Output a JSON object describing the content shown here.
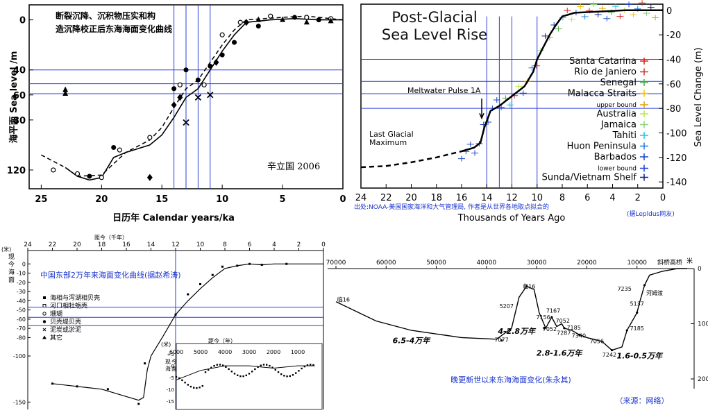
{
  "chart_data": [
    {
      "type": "scatter",
      "title": "断裂沉降、沉积物压实和构造沉降校正后东海海面变化曲线",
      "author": "辛立国 2006",
      "ylabel": "海平面 Sea level /m",
      "xlabel": "日历年 Calendar years/ka",
      "xlim": [
        26,
        0
      ],
      "ylim": [
        -135,
        12
      ],
      "x_ticks": [
        {
          "v": 25,
          "t": "25"
        },
        {
          "v": 20,
          "t": "20"
        },
        {
          "v": 15,
          "t": "15"
        },
        {
          "v": 10,
          "t": "10"
        },
        {
          "v": 5,
          "t": "5"
        },
        {
          "v": 0,
          "t": "0"
        }
      ],
      "y_ticks": [
        {
          "v": 0,
          "t": "0"
        },
        {
          "v": -40,
          "t": "40"
        },
        {
          "v": -60,
          "t": "60"
        },
        {
          "v": -80,
          "t": "80"
        },
        {
          "v": -120,
          "t": "120"
        }
      ],
      "ref_h": [
        -40,
        -51,
        -59
      ],
      "ref_v": [
        14,
        13,
        12,
        11
      ],
      "solid_curve": [
        [
          23,
          -118
        ],
        [
          22,
          -125
        ],
        [
          21,
          -128
        ],
        [
          20,
          -126
        ],
        [
          19,
          -110
        ],
        [
          18,
          -106
        ],
        [
          16,
          -100
        ],
        [
          15,
          -92
        ],
        [
          14,
          -78
        ],
        [
          13,
          -62
        ],
        [
          12,
          -55
        ],
        [
          11,
          -40
        ],
        [
          10,
          -25
        ],
        [
          9,
          -12
        ],
        [
          8,
          -2
        ],
        [
          6,
          0
        ],
        [
          4,
          1
        ],
        [
          2,
          0
        ],
        [
          0,
          0
        ]
      ],
      "dashed_curve": [
        [
          25,
          -108
        ],
        [
          23,
          -118
        ],
        [
          22,
          -125
        ],
        [
          20,
          -124
        ],
        [
          18,
          -106
        ],
        [
          16,
          -96
        ],
        [
          15,
          -86
        ],
        [
          14,
          -70
        ],
        [
          13,
          -55
        ],
        [
          12,
          -48
        ],
        [
          11,
          -34
        ],
        [
          10,
          -20
        ],
        [
          9,
          -8
        ],
        [
          8,
          0
        ],
        [
          5,
          2
        ],
        [
          3,
          3
        ],
        [
          0,
          0
        ]
      ],
      "circles": [
        [
          24,
          -120
        ],
        [
          22,
          -123
        ],
        [
          20,
          -126
        ],
        [
          18.5,
          -104
        ],
        [
          16,
          -94
        ],
        [
          13.5,
          -52
        ],
        [
          11.5,
          -52
        ],
        [
          10,
          -12
        ],
        [
          8.5,
          -2
        ],
        [
          6,
          3
        ],
        [
          3,
          2
        ],
        [
          1,
          1
        ]
      ],
      "dots": [
        [
          21,
          -125
        ],
        [
          19,
          -102
        ],
        [
          14,
          -55
        ],
        [
          13,
          -40
        ],
        [
          12,
          -48
        ],
        [
          11,
          -37
        ],
        [
          10,
          -28
        ],
        [
          9,
          -18
        ],
        [
          7,
          -5
        ],
        [
          4,
          2
        ],
        [
          2,
          0
        ]
      ],
      "diamonds": [
        [
          16,
          -126
        ],
        [
          14,
          -68
        ],
        [
          13.5,
          -62
        ],
        [
          10.5,
          -34
        ],
        [
          8,
          -2
        ]
      ],
      "triangles": [
        [
          23,
          -56
        ],
        [
          23,
          -59
        ],
        [
          7,
          0
        ],
        [
          5,
          0
        ],
        [
          3,
          -2
        ],
        [
          1,
          -1
        ]
      ],
      "crosses": [
        [
          13,
          -82
        ],
        [
          12,
          -62
        ],
        [
          11,
          -60
        ]
      ]
    },
    {
      "type": "line",
      "title_line1": "Post-Glacial",
      "title_line2": "Sea Level Rise",
      "xlabel": "Thousands of Years Ago",
      "ylabel": "Sea Level Change (m)",
      "xlim": [
        24,
        0
      ],
      "ylim": [
        -145,
        5
      ],
      "x_ticks": [
        24,
        22,
        20,
        18,
        16,
        14,
        12,
        10,
        8,
        6,
        4,
        2,
        0
      ],
      "y_ticks": [
        0,
        -20,
        -40,
        -60,
        -80,
        -100,
        -120,
        -140
      ],
      "annotation_mwp": "Meltwater Pulse 1A",
      "annotation_lgm_1": "Last Glacial",
      "annotation_lgm_2": "Maximum",
      "source_note": "出处:NOAA-美国国家海洋和大气管理局, 作者是从世界各地取点拟合的",
      "credit": "(据Lepldus网友)",
      "ref_h": [
        -40,
        -58,
        -68,
        -80
      ],
      "ref_v": [
        14,
        13,
        12,
        10
      ],
      "fit_dashed": [
        [
          24,
          -128
        ],
        [
          22,
          -127
        ],
        [
          20,
          -124
        ],
        [
          18,
          -120
        ],
        [
          16,
          -115
        ]
      ],
      "fit_solid": [
        [
          16,
          -115
        ],
        [
          15,
          -112
        ],
        [
          14.5,
          -108
        ],
        [
          14.2,
          -96
        ],
        [
          13.7,
          -82
        ],
        [
          13,
          -78
        ],
        [
          12,
          -70
        ],
        [
          11,
          -62
        ],
        [
          10.3,
          -50
        ],
        [
          10,
          -40
        ],
        [
          9.5,
          -30
        ],
        [
          9,
          -20
        ],
        [
          8.5,
          -12
        ],
        [
          8,
          -5
        ],
        [
          7,
          -2
        ],
        [
          5,
          -1
        ],
        [
          3,
          0
        ],
        [
          0,
          0
        ]
      ],
      "series": [
        {
          "name": "Santa Catarina",
          "color": "#d71e1e"
        },
        {
          "name": "Rio de Janiero",
          "color": "#c0392b"
        },
        {
          "name": "Senegal",
          "color": "#4caf50"
        },
        {
          "name": "Malacca Straits",
          "color": "#f4c20d"
        },
        {
          "name": "upper bound",
          "color": "#e0a000",
          "small": true
        },
        {
          "name": "Australia",
          "color": "#b7e94a"
        },
        {
          "name": "Jamaica",
          "color": "#8bd17c"
        },
        {
          "name": "Tahiti",
          "color": "#27c0e8"
        },
        {
          "name": "Huon Peninsula",
          "color": "#1f7be0"
        },
        {
          "name": "Barbados",
          "color": "#1846c8"
        },
        {
          "name": "lower bound",
          "color": "#1f3fd0",
          "small": true
        },
        {
          "name": "Sunda/Vietnam Shelf",
          "color": "#102080"
        }
      ]
    },
    {
      "type": "line",
      "title": "中国东部2万年来海面变化曲线(据赵希涛)",
      "top_axis_label": "距今（千年）",
      "ylabel_chars": [
        "(米)",
        "现",
        "今",
        "海",
        "面"
      ],
      "xlim": [
        24,
        0
      ],
      "ylim": [
        -155,
        10
      ],
      "x_ticks": [
        24,
        22,
        20,
        18,
        16,
        14,
        12,
        10,
        8,
        6,
        4,
        2,
        0
      ],
      "y_ticks": [
        0,
        -10,
        -20,
        -30,
        -40,
        -50,
        -60,
        -70,
        -80
      ],
      "y_ticks_lower": [
        -100,
        -150
      ],
      "ref_h": [
        -47,
        -58,
        -67
      ],
      "ref_v": [
        12
      ],
      "curve": [
        [
          22,
          -130
        ],
        [
          20,
          -133
        ],
        [
          18,
          -136
        ],
        [
          16,
          -144
        ],
        [
          15,
          -148
        ],
        [
          14.6,
          -145
        ],
        [
          14.3,
          -115
        ],
        [
          14,
          -100
        ],
        [
          13,
          -78
        ],
        [
          12,
          -55
        ],
        [
          11,
          -40
        ],
        [
          10,
          -27
        ],
        [
          9,
          -15
        ],
        [
          8,
          -5
        ],
        [
          7,
          -2
        ],
        [
          6,
          0
        ],
        [
          5,
          -1
        ],
        [
          4,
          0
        ],
        [
          3,
          0
        ],
        [
          2,
          0
        ],
        [
          0,
          0
        ]
      ],
      "points": [
        [
          22,
          -130
        ],
        [
          20,
          -133
        ],
        [
          17.5,
          -136
        ],
        [
          15,
          -152
        ],
        [
          14.5,
          -108
        ],
        [
          12,
          -55
        ],
        [
          11,
          -33
        ],
        [
          10,
          -22
        ],
        [
          9,
          -12
        ],
        [
          8.2,
          -3
        ],
        [
          7,
          -2
        ],
        [
          6,
          0
        ],
        [
          5,
          -1
        ],
        [
          3,
          0
        ]
      ],
      "legend": [
        "海相与泻湖相贝壳",
        "河口相牡蛎壳",
        "珊瑚",
        "贝壳堤贝壳",
        "泥炭或淤泥",
        "其它"
      ],
      "inset_label": "距今（年）",
      "inset_x_ticks": [
        6000,
        5000,
        4000,
        3000,
        2000,
        1000
      ],
      "inset_ylabel_unit": "(米)",
      "inset_ylabel_chars": [
        "现",
        "今",
        "海",
        "面"
      ],
      "inset_y_ticks": [
        {
          "v": 5,
          "t": "+5"
        },
        {
          "v": 0,
          "t": "0"
        },
        {
          "v": -5,
          "t": "-5"
        },
        {
          "v": -10,
          "t": "-10"
        },
        {
          "v": -15,
          "t": "-15"
        }
      ]
    },
    {
      "type": "line",
      "title": "晚更新世以来东海海面变化(朱永其)",
      "source": "（来源：网络）",
      "top_axis_label_right": "米",
      "xlim": [
        70000,
        0
      ],
      "ylim": [
        200,
        0
      ],
      "x_ticks": [
        70000,
        60000,
        50000,
        40000,
        30000,
        20000,
        10000
      ],
      "y_ticks": [
        0,
        100,
        200
      ],
      "site_top_label": "斜桥高桥",
      "site_labels": [
        {
          "t": "临16",
          "x": 68500,
          "y": 60
        },
        {
          "t": "临16",
          "x": 31500,
          "y": 36
        },
        {
          "t": "河姆渡",
          "x": 6500,
          "y": 48
        }
      ],
      "curve": [
        [
          70000,
          60
        ],
        [
          62000,
          95
        ],
        [
          55000,
          112
        ],
        [
          45000,
          125
        ],
        [
          38000,
          128
        ],
        [
          35000,
          108
        ],
        [
          33500,
          52
        ],
        [
          32000,
          32
        ],
        [
          30500,
          38
        ],
        [
          29500,
          80
        ],
        [
          28200,
          108
        ],
        [
          27000,
          88
        ],
        [
          26000,
          105
        ],
        [
          25000,
          100
        ],
        [
          24500,
          108
        ],
        [
          23000,
          112
        ],
        [
          21500,
          120
        ],
        [
          20000,
          125
        ],
        [
          17000,
          132
        ],
        [
          15000,
          148
        ],
        [
          13000,
          142
        ],
        [
          12000,
          112
        ],
        [
          10000,
          80
        ],
        [
          9500,
          62
        ],
        [
          8500,
          30
        ],
        [
          7500,
          12
        ],
        [
          5000,
          5
        ],
        [
          2000,
          0
        ],
        [
          0,
          0
        ]
      ],
      "sample_labels": [
        {
          "t": "7077",
          "x": 37000,
          "y": 133
        },
        {
          "t": "5207",
          "x": 36000,
          "y": 72
        },
        {
          "t": "7156",
          "x": 28700,
          "y": 92
        },
        {
          "t": "7167",
          "x": 26700,
          "y": 80
        },
        {
          "t": "7052",
          "x": 24800,
          "y": 98
        },
        {
          "t": "7052",
          "x": 27400,
          "y": 113
        },
        {
          "t": "7185",
          "x": 22600,
          "y": 111
        },
        {
          "t": "7287",
          "x": 24600,
          "y": 120
        },
        {
          "t": "7340",
          "x": 21600,
          "y": 125
        },
        {
          "t": "7056",
          "x": 18000,
          "y": 135
        },
        {
          "t": "7242",
          "x": 15500,
          "y": 160
        },
        {
          "t": "7185",
          "x": 10000,
          "y": 112
        },
        {
          "t": "7235",
          "x": 12500,
          "y": 40
        },
        {
          "t": "5137",
          "x": 10000,
          "y": 67
        }
      ],
      "period_labels": [
        {
          "t": "6.5-4万年",
          "x": 55000,
          "y": 135
        },
        {
          "t": "4-2.8万年",
          "x": 34000,
          "y": 118
        },
        {
          "t": "2.8-1.6万年",
          "x": 25500,
          "y": 158
        },
        {
          "t": "1.6-0.5万年",
          "x": 9500,
          "y": 163
        }
      ]
    }
  ]
}
